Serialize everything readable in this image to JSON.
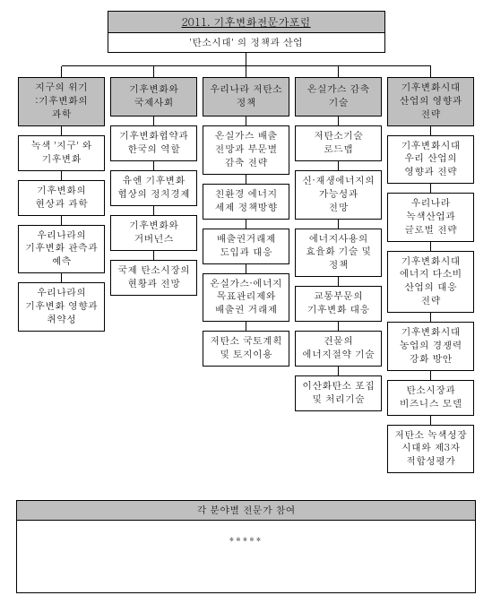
{
  "root": {
    "title": "2011. 기후변화전문가포럼",
    "subtitle": "'탄소시대' 의 정책과 산업"
  },
  "columns": [
    {
      "head": "지구의 위기\n:기후변화의\n과학",
      "items": [
        "녹색 '지구' 와\n기후변화",
        "기후변화의\n현상과 과학",
        "우리나라의\n기후변화 관측과\n예측",
        "우리나라의\n기후변화 영향과\n취약성"
      ]
    },
    {
      "head": "기후변화와\n국제사회",
      "items": [
        "기후변화협약과\n한국의 역할",
        "유엔 기후변화\n협상의 정치경제",
        "기후변화와\n거버넌스",
        "국제 탄소시장의\n현황과 전망"
      ]
    },
    {
      "head": "우리나라 저탄소\n정책",
      "items": [
        "온실가스 배출\n전망과 부문별\n감축 전략",
        "친환경 에너지\n세제 정책방향",
        "배출권거래제\n도입과 대응",
        "온실가스·에너지\n목표관리제와\n배출권 거래제",
        "저탄소 국토계획\n및 토지이용"
      ]
    },
    {
      "head": "온실가스 감축\n기술",
      "items": [
        "저탄소기술\n로드맵",
        "신·재생에너지의\n가능성과\n전망",
        "에너지사용의\n효율화 기술 및\n정책",
        "교통부문의\n기후변화 대응",
        "건물의\n에너지절약 기술",
        "이산화탄소 포집\n및 처리기술"
      ]
    },
    {
      "head": "기후변화시대\n산업의 영향과\n전략",
      "items": [
        "기후변화시대\n우리 산업의\n영향과 전략",
        "우리나라\n녹색산업과\n글로벌 전략",
        "기후변화시대\n에너지 다소비\n산업의 대응\n전략",
        "기후변화시대\n농업의 경쟁력\n강화 방안",
        "탄소시장과\n비즈니스 모델",
        "저탄소 녹색성장\n시대와 제3자\n적합성평가"
      ]
    }
  ],
  "footer": {
    "head": "각 분야별 전문가 참여",
    "body": "*****"
  },
  "style": {
    "header_bg": "#bfbfbf",
    "border_color": "#000000",
    "background": "#ffffff",
    "font_size_pt": 8
  }
}
